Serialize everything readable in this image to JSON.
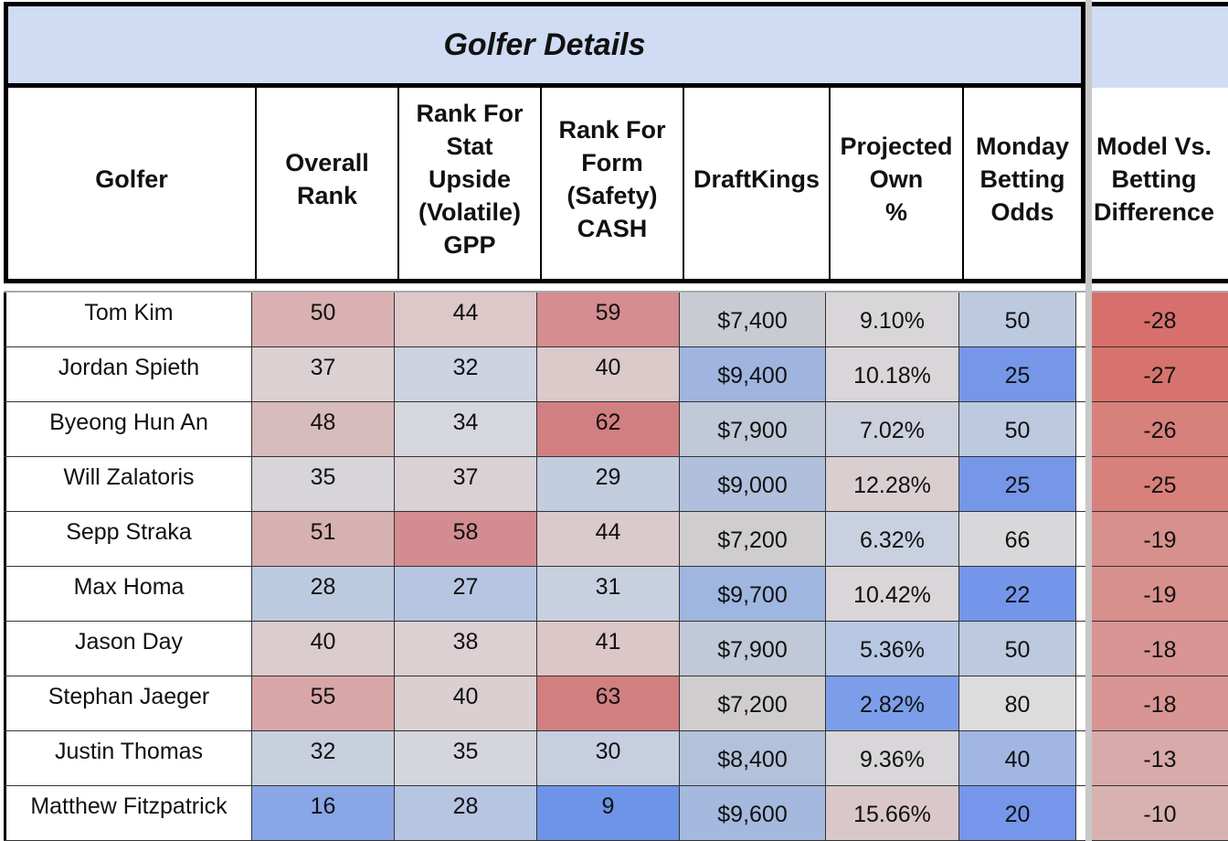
{
  "title": "Golfer Details",
  "headers": [
    "Golfer",
    "Overall\nRank",
    "Rank For\nStat\nUpside\n(Volatile)\nGPP",
    "Rank For\nForm\n(Safety)\nCASH",
    "DraftKings",
    "Projected\nOwn\n%",
    "Monday\nBetting\nOdds"
  ],
  "right_header": "Model Vs.\nBetting\nDifference",
  "rows": [
    {
      "golfer": "Tom Kim",
      "overall": "50",
      "stat": "44",
      "form": "59",
      "dk": "$7,400",
      "own": "9.10%",
      "odds": "50",
      "diff": "-28"
    },
    {
      "golfer": "Jordan Spieth",
      "overall": "37",
      "stat": "32",
      "form": "40",
      "dk": "$9,400",
      "own": "10.18%",
      "odds": "25",
      "diff": "-27"
    },
    {
      "golfer": "Byeong Hun An",
      "overall": "48",
      "stat": "34",
      "form": "62",
      "dk": "$7,900",
      "own": "7.02%",
      "odds": "50",
      "diff": "-26"
    },
    {
      "golfer": "Will Zalatoris",
      "overall": "35",
      "stat": "37",
      "form": "29",
      "dk": "$9,000",
      "own": "12.28%",
      "odds": "25",
      "diff": "-25"
    },
    {
      "golfer": "Sepp Straka",
      "overall": "51",
      "stat": "58",
      "form": "44",
      "dk": "$7,200",
      "own": "6.32%",
      "odds": "66",
      "diff": "-19"
    },
    {
      "golfer": "Max Homa",
      "overall": "28",
      "stat": "27",
      "form": "31",
      "dk": "$9,700",
      "own": "10.42%",
      "odds": "22",
      "diff": "-19"
    },
    {
      "golfer": "Jason Day",
      "overall": "40",
      "stat": "38",
      "form": "41",
      "dk": "$7,900",
      "own": "5.36%",
      "odds": "50",
      "diff": "-18"
    },
    {
      "golfer": "Stephan Jaeger",
      "overall": "55",
      "stat": "40",
      "form": "63",
      "dk": "$7,200",
      "own": "2.82%",
      "odds": "80",
      "diff": "-18"
    },
    {
      "golfer": "Justin Thomas",
      "overall": "32",
      "stat": "35",
      "form": "30",
      "dk": "$8,400",
      "own": "9.36%",
      "odds": "40",
      "diff": "-13"
    },
    {
      "golfer": "Matthew Fitzpatrick",
      "overall": "16",
      "stat": "28",
      "form": "9",
      "dk": "$9,600",
      "own": "15.66%",
      "odds": "20",
      "diff": "-10"
    }
  ],
  "colors": {
    "banner": "#cfdcf3",
    "overall": [
      "#d9b1b2",
      "#dbd1d3",
      "#d8bbbd",
      "#d7d4da",
      "#d7b0b1",
      "#bccadf",
      "#dacbcd",
      "#d9a6a8",
      "#c9d0dd",
      "#89a7e6"
    ],
    "stat": [
      "#ddc7c9",
      "#cdd3e1",
      "#d6d6de",
      "#d9d1d4",
      "#d38c8f",
      "#b6c6e2",
      "#ddd0d2",
      "#dad0d2",
      "#d5d6dd",
      "#b5c5e2"
    ],
    "form": [
      "#d58d8f",
      "#dcc9ca",
      "#d27f81",
      "#c2cde0",
      "#dbcacc",
      "#c8d0df",
      "#dcc6c8",
      "#d27f80",
      "#c6cee0",
      "#6d94e6"
    ],
    "dk": [
      "#c9cbd3",
      "#9fb5df",
      "#c1c8d7",
      "#b0bfdc",
      "#d0cdcf",
      "#9fb6e0",
      "#c1c8d7",
      "#d0cdcf",
      "#b3c1db",
      "#a5b9de"
    ],
    "own": [
      "#d9d6da",
      "#d9d5d8",
      "#cbd0dc",
      "#d9cfd1",
      "#c9d1e0",
      "#d9d5d8",
      "#b8c8e3",
      "#7c9eea",
      "#d9d6da",
      "#d9c7c9"
    ],
    "odds": [
      "#bcc9df",
      "#7697e8",
      "#bcc9df",
      "#7697e8",
      "#d8d8da",
      "#7396ea",
      "#bcc9df",
      "#dcdcdc",
      "#a1b6e2",
      "#7596eb"
    ],
    "diff": [
      "#d7706c",
      "#d7736f",
      "#d8807c",
      "#d8807c",
      "#d7908c",
      "#d7908c",
      "#d89593",
      "#d89593",
      "#d8aaa9",
      "#d8b2b1"
    ]
  }
}
